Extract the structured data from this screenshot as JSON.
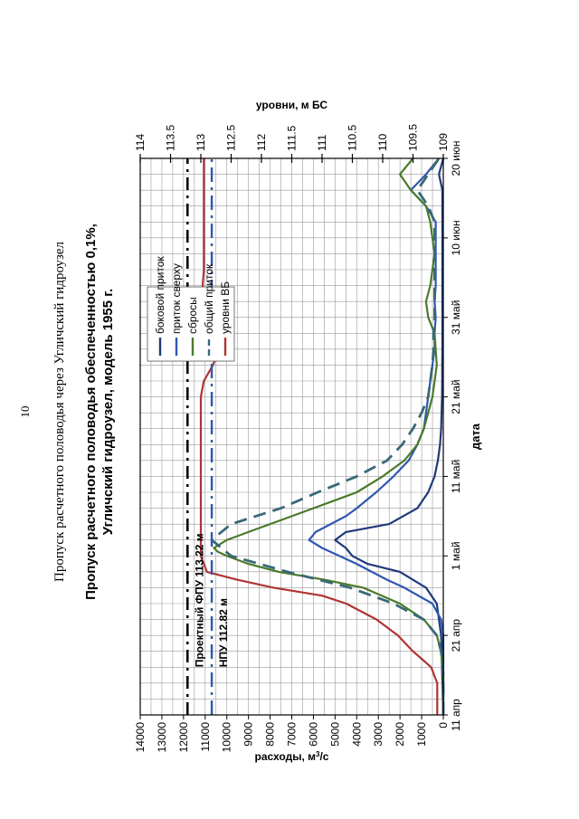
{
  "page": {
    "page_number": "10",
    "running_header": "Пропуск расчетного половодья через Угличский гидроузел"
  },
  "chart_data": {
    "type": "line",
    "title_line1": "Пропуск расчетного половодья обеспеченностью 0,1%,",
    "title_line2": "Угличский гидроузел, модель 1955 г.",
    "xlabel": "дата",
    "ylabel_left": "расходы, м³/с",
    "ylabel_left_main": "расходы, м",
    "ylabel_left_sup": "3",
    "ylabel_left_tail": "/с",
    "ylabel_right": "уровни, м БС",
    "x_ticks": [
      "11 апр",
      "21 апр",
      "1 май",
      "11 май",
      "21 май",
      "31 май",
      "10 июн",
      "20 июн"
    ],
    "x_tick_days": [
      0,
      10,
      20,
      30,
      40,
      50,
      60,
      70
    ],
    "xlim": [
      0,
      70
    ],
    "ylim_left": [
      0,
      14000
    ],
    "y_ticks_left": [
      0,
      1000,
      2000,
      3000,
      4000,
      5000,
      6000,
      7000,
      8000,
      9000,
      10000,
      11000,
      12000,
      13000,
      14000
    ],
    "ylim_right": [
      109,
      114
    ],
    "y_ticks_right": [
      "109",
      "109.5",
      "110",
      "110.5",
      "111",
      "111.5",
      "112",
      "112.5",
      "113",
      "113.5",
      "114"
    ],
    "grid": true,
    "legend_position": "top-right",
    "annotations": {
      "fpu_label": "Проектный ФПУ 113.22 м",
      "npu_label": "НПУ 112.82 м",
      "fpu_level": 113.22,
      "npu_level": 112.82
    },
    "series": [
      {
        "name": "боковой приток",
        "color": "#1f3a7a",
        "style": "solid",
        "axis": "left",
        "x": [
          0,
          5,
          10,
          14,
          16,
          18,
          19,
          20,
          21,
          22,
          23,
          24,
          26,
          28,
          30,
          32,
          34,
          36,
          38,
          40,
          42,
          44,
          46,
          48,
          50,
          52,
          54,
          56,
          58,
          60,
          62,
          64,
          66,
          68,
          70
        ],
        "y": [
          0,
          50,
          100,
          300,
          800,
          2000,
          3500,
          4200,
          4500,
          5000,
          4500,
          2500,
          1200,
          700,
          400,
          250,
          150,
          100,
          80,
          60,
          50,
          50,
          40,
          40,
          40,
          40,
          40,
          40,
          40,
          40,
          40,
          40,
          40,
          200,
          0
        ]
      },
      {
        "name": "приток сверху",
        "color": "#2f57b0",
        "style": "solid",
        "axis": "left",
        "x": [
          0,
          5,
          10,
          12,
          14,
          16,
          17,
          18,
          19,
          20,
          21,
          22,
          23,
          24,
          25,
          26,
          28,
          30,
          32,
          34,
          36,
          38,
          40,
          42,
          44,
          46,
          48,
          50,
          52,
          54,
          56,
          58,
          60,
          62,
          64,
          66,
          68,
          70
        ],
        "y": [
          0,
          0,
          0,
          100,
          500,
          1800,
          2600,
          3300,
          4000,
          4800,
          5600,
          6200,
          5900,
          5200,
          4500,
          4000,
          3100,
          2300,
          1600,
          1200,
          900,
          800,
          700,
          600,
          500,
          400,
          400,
          350,
          400,
          350,
          350,
          350,
          350,
          350,
          800,
          1500,
          800,
          200
        ]
      },
      {
        "name": "сбросы",
        "color": "#4a7a2a",
        "style": "solid",
        "axis": "left",
        "x": [
          0,
          5,
          8,
          10,
          12,
          14,
          16,
          17,
          18,
          19,
          20,
          20.5,
          21,
          22,
          23,
          24,
          25,
          26,
          27,
          28,
          30,
          32,
          34,
          36,
          38,
          40,
          42,
          44,
          46,
          48,
          50,
          52,
          54,
          56,
          58,
          60,
          62,
          64,
          66,
          68,
          70
        ],
        "y": [
          0,
          0,
          100,
          300,
          900,
          2000,
          3700,
          5500,
          7600,
          9000,
          10000,
          10400,
          10600,
          10000,
          9000,
          8000,
          7000,
          6000,
          5000,
          4000,
          2800,
          1800,
          1200,
          900,
          700,
          500,
          400,
          300,
          350,
          400,
          700,
          800,
          600,
          500,
          400,
          500,
          600,
          800,
          1500,
          2000,
          1400
        ]
      },
      {
        "name": "общий приток",
        "color": "#3a6878",
        "style": "dashed",
        "axis": "left",
        "x": [
          0,
          5,
          8,
          10,
          12,
          14,
          16,
          18,
          20,
          22,
          24,
          26,
          28,
          30,
          32,
          34,
          36,
          38,
          40,
          42,
          44,
          46,
          48,
          50,
          52,
          54,
          56,
          58,
          60,
          62,
          64,
          66,
          68,
          70
        ],
        "y": [
          0,
          0,
          100,
          300,
          900,
          2300,
          4300,
          7200,
          9800,
          10700,
          9800,
          7500,
          5800,
          4000,
          2600,
          1900,
          1400,
          1000,
          700,
          600,
          500,
          450,
          450,
          400,
          400,
          400,
          400,
          400,
          400,
          400,
          700,
          1200,
          700,
          200
        ]
      },
      {
        "name": "уровни ВБ",
        "color": "#b03434",
        "style": "solid",
        "axis": "right",
        "x": [
          0,
          4,
          6,
          7,
          8,
          10,
          12,
          14,
          15,
          16,
          17,
          18,
          20,
          30,
          40,
          42,
          44,
          46,
          48,
          50,
          52,
          54,
          56,
          58,
          60,
          62,
          64,
          66,
          68,
          70
        ],
        "y": [
          109.1,
          109.1,
          109.2,
          109.35,
          109.5,
          109.75,
          110.1,
          110.6,
          111.0,
          111.8,
          112.4,
          112.9,
          113.0,
          113.0,
          113.0,
          112.95,
          112.8,
          112.7,
          112.85,
          112.92,
          112.97,
          112.97,
          112.95,
          112.95,
          112.95,
          112.95,
          112.95,
          112.95,
          112.95,
          112.95
        ]
      }
    ]
  }
}
